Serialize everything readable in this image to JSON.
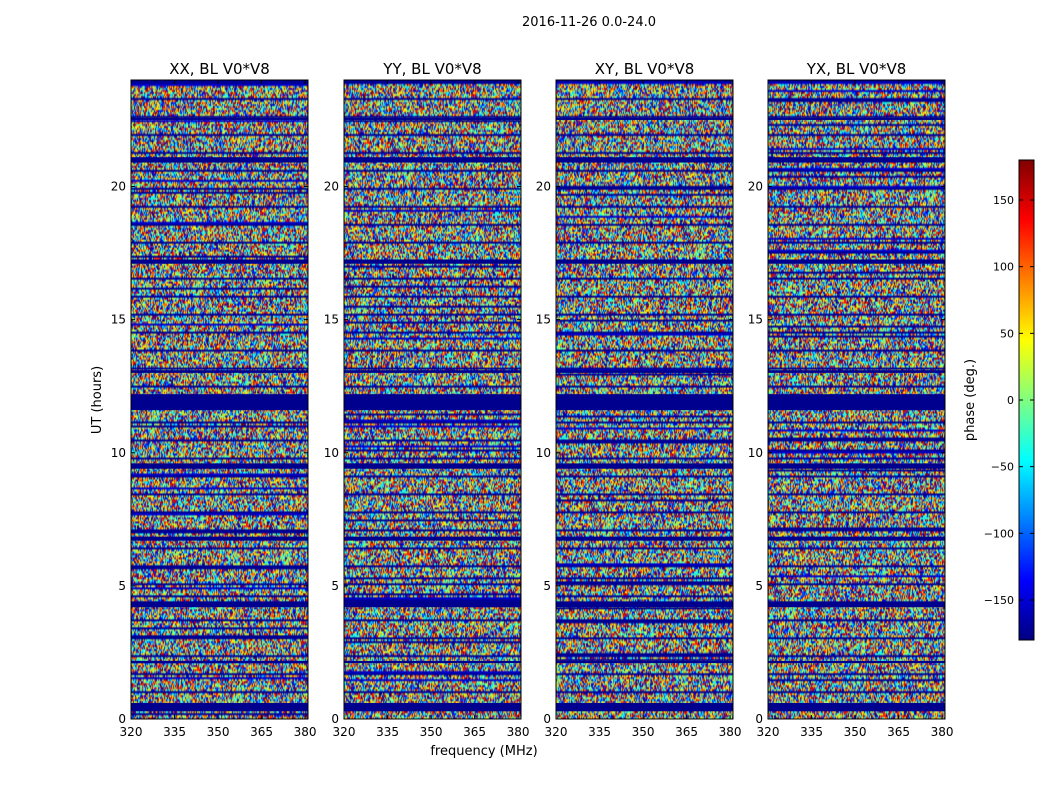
{
  "figure_title": "2016-11-26 0.0-24.0",
  "chart_data": [
    {
      "type": "heatmap",
      "title": "XX, BL V0*V8",
      "xlabel": "frequency (MHz)",
      "ylabel": "UT (hours)",
      "xlim": [
        320,
        381
      ],
      "ylim": [
        0,
        24
      ],
      "xticks": [
        "320",
        "335",
        "350",
        "365",
        "380"
      ],
      "yticks": [
        "0",
        "5",
        "10",
        "15",
        "20"
      ],
      "value_label": "phase (deg.)",
      "value_range": [
        -180,
        180
      ]
    },
    {
      "type": "heatmap",
      "title": "YY, BL V0*V8",
      "xlabel": "frequency (MHz)",
      "ylabel": "UT (hours)",
      "xlim": [
        320,
        381
      ],
      "ylim": [
        0,
        24
      ],
      "xticks": [
        "320",
        "335",
        "350",
        "365",
        "380"
      ],
      "yticks": [
        "0",
        "5",
        "10",
        "15",
        "20"
      ],
      "value_label": "phase (deg.)",
      "value_range": [
        -180,
        180
      ]
    },
    {
      "type": "heatmap",
      "title": "XY, BL V0*V8",
      "xlabel": "frequency (MHz)",
      "ylabel": "UT (hours)",
      "xlim": [
        320,
        381
      ],
      "ylim": [
        0,
        24
      ],
      "xticks": [
        "320",
        "335",
        "350",
        "365",
        "380"
      ],
      "yticks": [
        "0",
        "5",
        "10",
        "15",
        "20"
      ],
      "value_label": "phase (deg.)",
      "value_range": [
        -180,
        180
      ]
    },
    {
      "type": "heatmap",
      "title": "YX, BL V0*V8",
      "xlabel": "frequency (MHz)",
      "ylabel": "UT (hours)",
      "xlim": [
        320,
        381
      ],
      "ylim": [
        0,
        24
      ],
      "xticks": [
        "320",
        "335",
        "350",
        "365",
        "380"
      ],
      "yticks": [
        "0",
        "5",
        "10",
        "15",
        "20"
      ],
      "value_label": "phase (deg.)",
      "value_range": [
        -180,
        180
      ]
    }
  ],
  "shared_xlabel": "frequency (MHz)",
  "shared_ylabel": "UT (hours)",
  "colorbar": {
    "label": "phase (deg.)",
    "min": -180,
    "max": 180,
    "ticks": [
      "150",
      "100",
      "50",
      "0",
      "−50",
      "−100",
      "−150"
    ],
    "tick_values": [
      150,
      100,
      50,
      0,
      -50,
      -100,
      -150
    ],
    "colormap": "jet"
  }
}
